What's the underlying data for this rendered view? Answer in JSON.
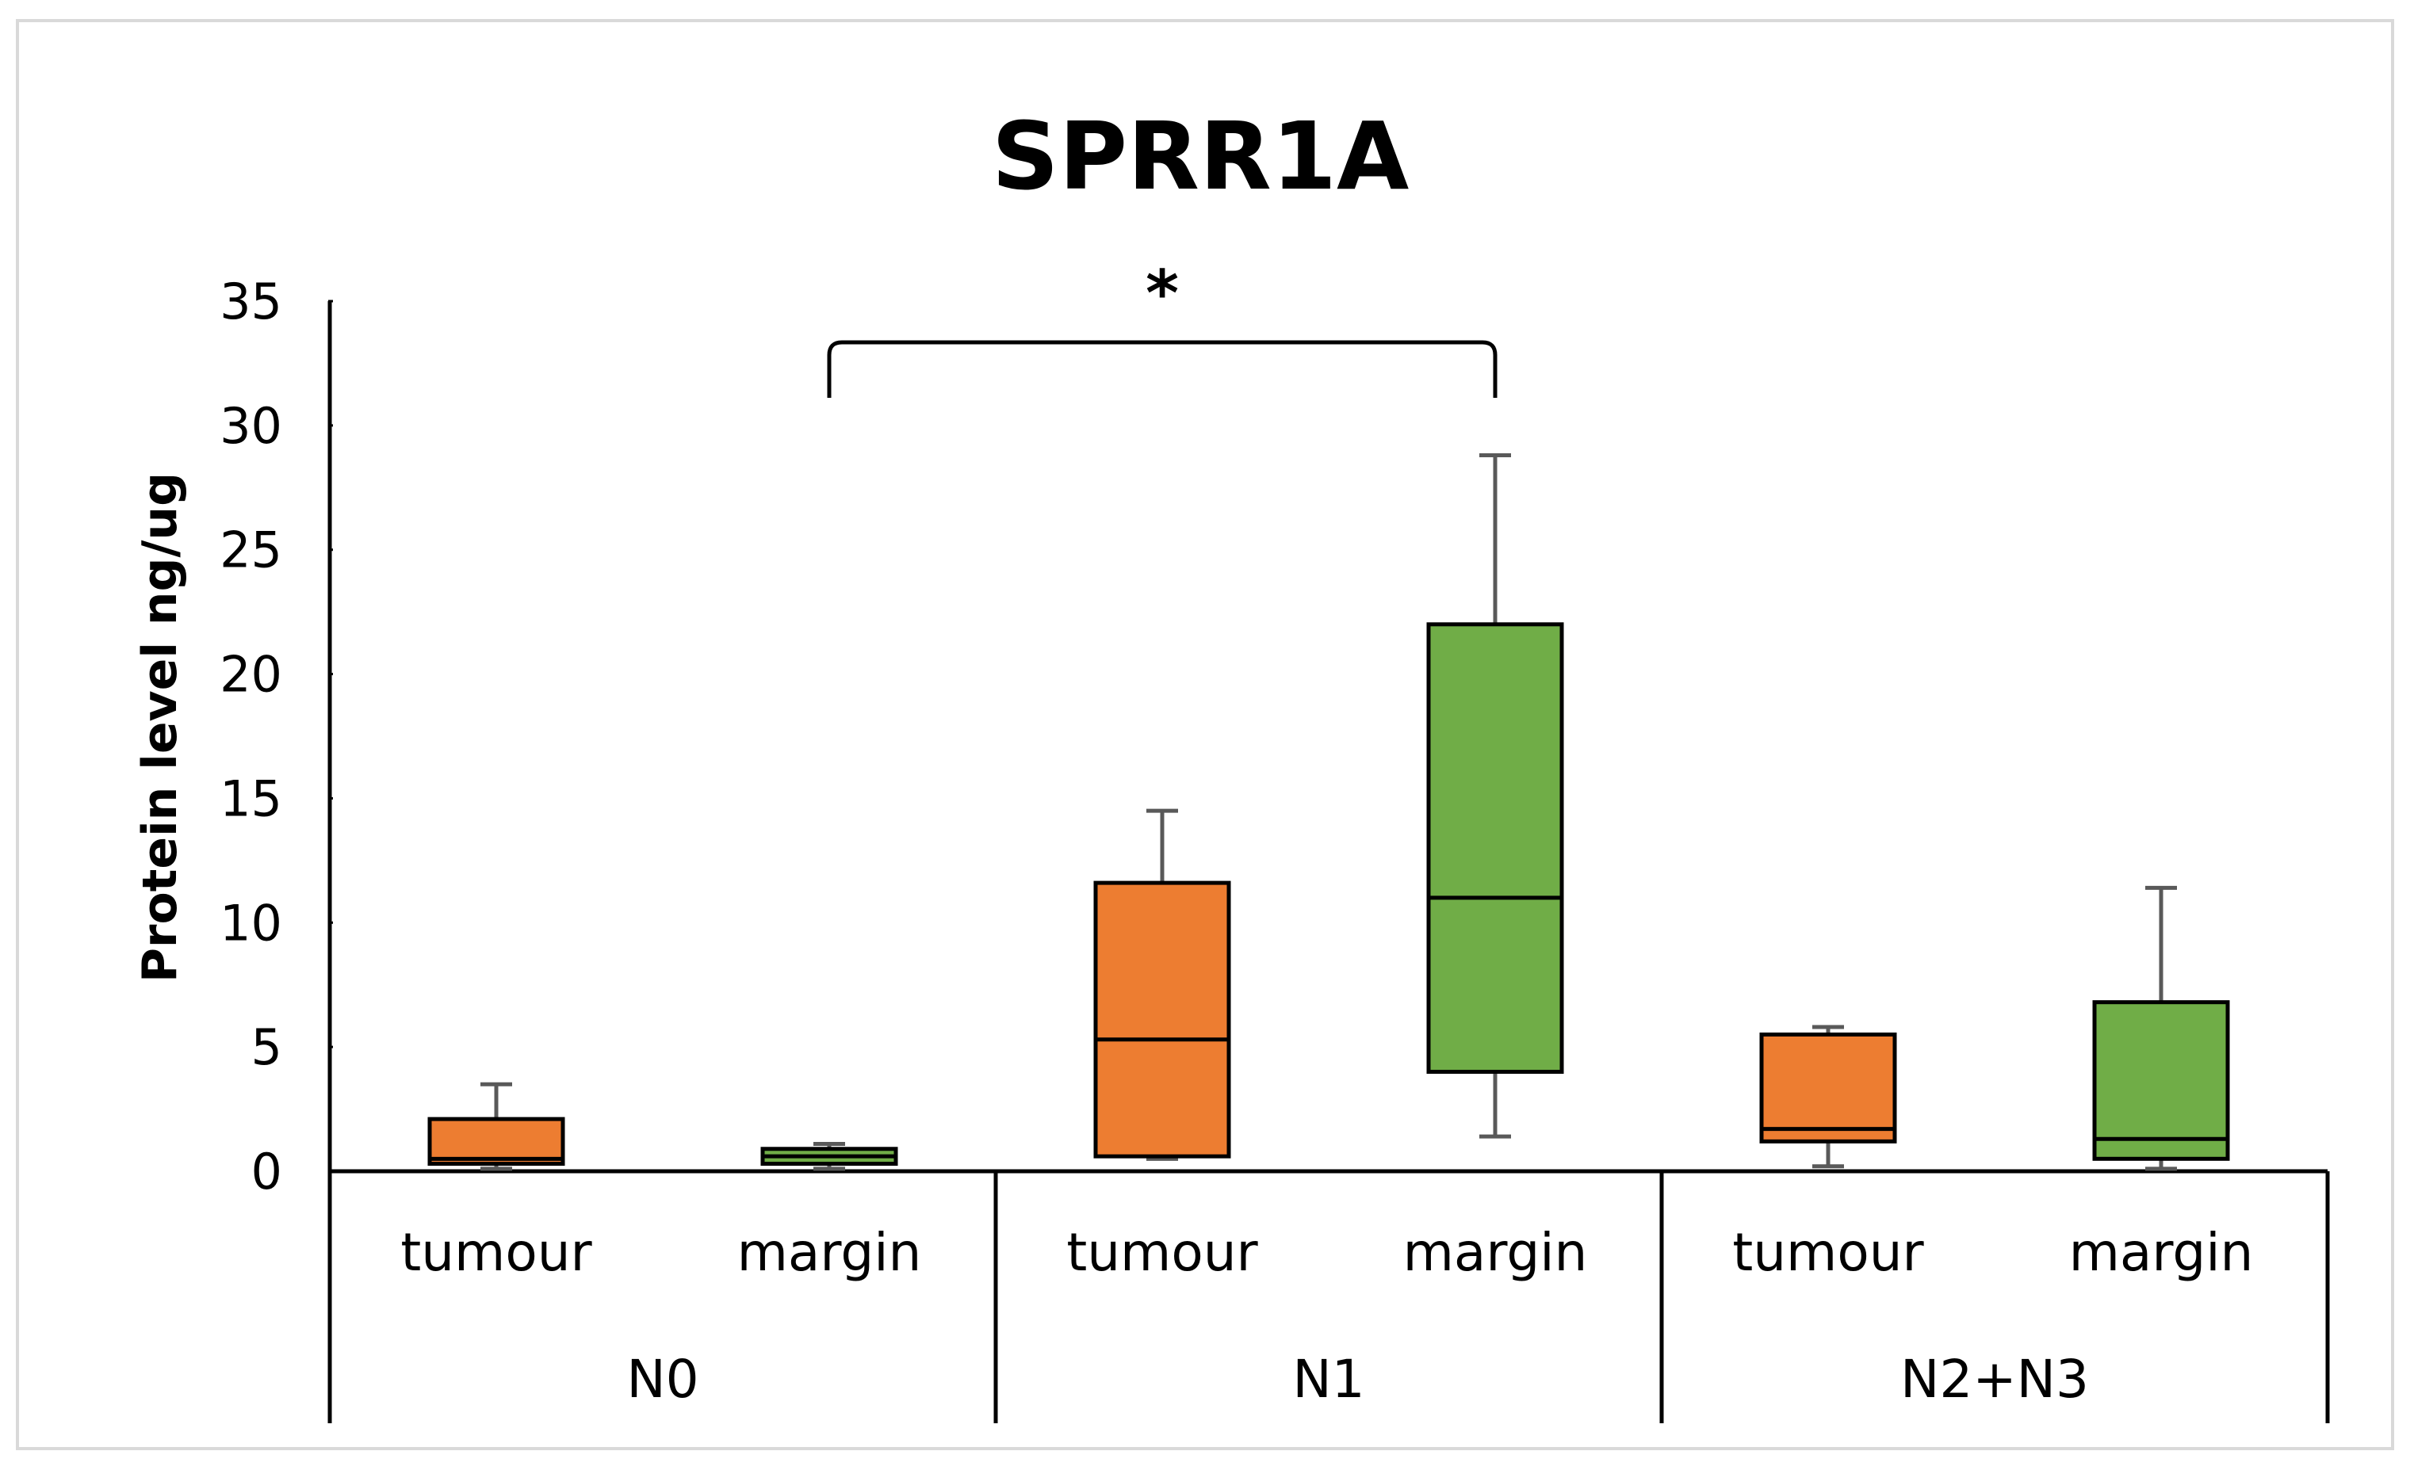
{
  "chart_data": {
    "type": "box",
    "title": "SPRR1A",
    "ylabel": "Protein level ng/ug",
    "xlabel": "",
    "ylim": [
      0,
      35
    ],
    "yticks": [
      0,
      5,
      10,
      15,
      20,
      25,
      30,
      35
    ],
    "groups": [
      {
        "label": "N0",
        "categories": [
          "tumour",
          "margin"
        ]
      },
      {
        "label": "N1",
        "categories": [
          "tumour",
          "margin"
        ]
      },
      {
        "label": "N2+N3",
        "categories": [
          "tumour",
          "margin"
        ]
      }
    ],
    "boxes": [
      {
        "group": "N0",
        "category": "tumour",
        "min": 0.1,
        "q1": 0.3,
        "median": 0.5,
        "q3": 2.1,
        "max": 3.5,
        "color": "#ed7d31"
      },
      {
        "group": "N0",
        "category": "margin",
        "min": 0.1,
        "q1": 0.3,
        "median": 0.6,
        "q3": 0.9,
        "max": 1.1,
        "color": "#70ad47"
      },
      {
        "group": "N1",
        "category": "tumour",
        "min": 0.5,
        "q1": 0.6,
        "median": 5.3,
        "q3": 11.6,
        "max": 14.5,
        "color": "#ed7d31"
      },
      {
        "group": "N1",
        "category": "margin",
        "min": 1.4,
        "q1": 4.0,
        "median": 11.0,
        "q3": 22.0,
        "max": 28.8,
        "color": "#70ad47"
      },
      {
        "group": "N2+N3",
        "category": "tumour",
        "min": 0.2,
        "q1": 1.2,
        "median": 1.7,
        "q3": 5.5,
        "max": 5.8,
        "color": "#ed7d31"
      },
      {
        "group": "N2+N3",
        "category": "margin",
        "min": 0.1,
        "q1": 0.5,
        "median": 1.3,
        "q3": 6.8,
        "max": 11.4,
        "color": "#70ad47"
      }
    ],
    "significance": {
      "from": "N0 margin",
      "to": "N1 margin",
      "label": "*"
    },
    "grid": false,
    "legend": "none"
  }
}
